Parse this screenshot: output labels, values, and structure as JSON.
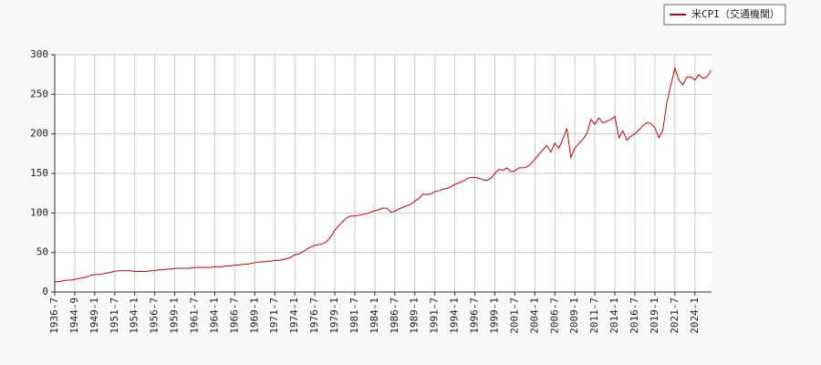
{
  "chart_data": {
    "type": "line",
    "categories": [
      "1936-7",
      null,
      null,
      null,
      null,
      "1944-9",
      null,
      null,
      null,
      null,
      "1949-1",
      null,
      null,
      null,
      null,
      "1951-7",
      null,
      null,
      null,
      null,
      "1954-1",
      null,
      null,
      null,
      null,
      "1956-7",
      null,
      null,
      null,
      null,
      "1959-1",
      null,
      null,
      null,
      null,
      "1961-7",
      null,
      null,
      null,
      null,
      "1964-1",
      null,
      null,
      null,
      null,
      "1966-7",
      null,
      null,
      null,
      null,
      "1969-1",
      null,
      null,
      null,
      null,
      "1971-7",
      null,
      null,
      null,
      null,
      "1974-1",
      null,
      null,
      null,
      null,
      "1976-7",
      null,
      null,
      null,
      null,
      "1979-1",
      null,
      null,
      null,
      null,
      "1981-7",
      null,
      null,
      null,
      null,
      "1984-1",
      null,
      null,
      null,
      null,
      "1986-7",
      null,
      null,
      null,
      null,
      "1989-1",
      null,
      null,
      null,
      null,
      "1991-7",
      null,
      null,
      null,
      null,
      "1994-1",
      null,
      null,
      null,
      null,
      "1996-7",
      null,
      null,
      null,
      null,
      "1999-1",
      null,
      null,
      null,
      null,
      "2001-7",
      null,
      null,
      null,
      null,
      "2004-1",
      null,
      null,
      null,
      null,
      "2006-7",
      null,
      null,
      null,
      null,
      "2009-1",
      null,
      null,
      null,
      null,
      "2011-7",
      null,
      null,
      null,
      null,
      "2014-1",
      null,
      null,
      null,
      null,
      "2016-7",
      null,
      null,
      null,
      null,
      "2019-1",
      null,
      null,
      null,
      null,
      "2021-7",
      null,
      null,
      null,
      null,
      "2024-1",
      null,
      null,
      null,
      null
    ],
    "series": [
      {
        "name": "米CPI（交通機関）",
        "color": "#cc0000",
        "values": [
          13,
          13,
          14,
          15,
          15,
          16,
          17,
          18,
          19,
          21,
          22,
          22,
          23,
          24,
          25,
          26,
          27,
          27,
          27,
          27,
          26,
          26,
          26,
          26,
          27,
          27,
          28,
          28,
          29,
          29,
          30,
          30,
          30,
          30,
          30,
          31,
          31,
          31,
          31,
          31,
          32,
          32,
          32,
          33,
          33,
          34,
          34,
          35,
          35,
          36,
          37,
          38,
          38,
          39,
          39,
          40,
          40,
          41,
          42,
          44,
          47,
          48,
          51,
          54,
          57,
          59,
          60,
          61,
          64,
          70,
          78,
          84,
          89,
          94,
          96,
          96,
          97,
          98,
          99,
          101,
          103,
          104,
          106,
          106,
          101,
          102,
          105,
          107,
          109,
          111,
          115,
          118,
          124,
          123,
          124,
          127,
          128,
          130,
          131,
          133,
          136,
          138,
          140,
          143,
          145,
          145,
          144,
          142,
          141,
          144,
          150,
          155,
          154,
          157,
          152,
          153,
          157,
          157,
          158,
          162,
          168,
          174,
          180,
          185,
          177,
          188,
          182,
          193,
          207,
          170,
          182,
          188,
          193,
          200,
          218,
          212,
          220,
          214,
          216,
          218,
          222,
          195,
          204,
          192,
          197,
          200,
          205,
          210,
          214,
          213,
          208,
          195,
          205,
          240,
          262,
          283,
          268,
          262,
          272,
          272,
          268,
          275,
          270,
          272,
          280
        ]
      }
    ],
    "ylim": [
      0,
      300
    ],
    "yticks": [
      0,
      50,
      100,
      150,
      200,
      250,
      300
    ],
    "grid": true,
    "legend": "top-right"
  }
}
